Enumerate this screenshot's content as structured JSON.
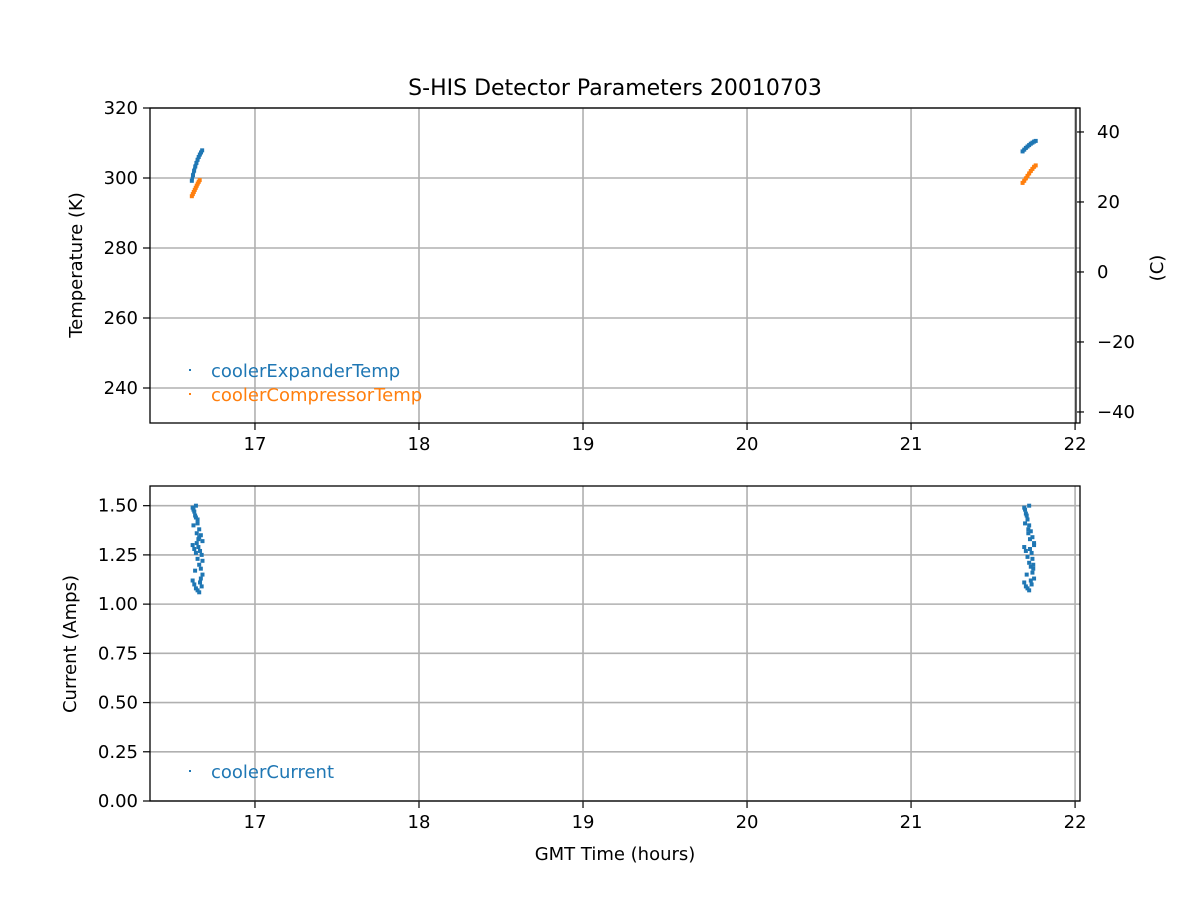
{
  "chart_data": [
    {
      "type": "scatter",
      "title": "S-HIS Detector Parameters 20010703",
      "xlabel": "",
      "ylabel": "Temperature (K)",
      "y2label": "(C)",
      "xlim": [
        16.36,
        22.03
      ],
      "ylim": [
        230,
        320
      ],
      "y2lim": [
        -43.15,
        46.85
      ],
      "xticks": [
        17,
        18,
        19,
        20,
        21,
        22
      ],
      "yticks": [
        240,
        260,
        280,
        300,
        320
      ],
      "y2ticks": [
        -40,
        -20,
        0,
        20,
        40
      ],
      "y2tick_labels": [
        "−40",
        "−20",
        "0",
        "20",
        "40"
      ],
      "grid": true,
      "legend_position": "lower-left",
      "series": [
        {
          "name": "coolerExpanderTemp",
          "color": "#1f77b4",
          "x": [
            16.615,
            16.622,
            16.629,
            16.636,
            16.643,
            16.65,
            16.657,
            16.664,
            16.671,
            16.678,
            21.68,
            21.69,
            21.7,
            21.71,
            21.72,
            21.73,
            21.74,
            21.75,
            21.76
          ],
          "y": [
            299.2,
            300.8,
            302.1,
            303.3,
            304.3,
            305.2,
            306.0,
            306.7,
            307.3,
            307.9,
            307.6,
            308.1,
            308.6,
            309.0,
            309.4,
            309.8,
            310.1,
            310.4,
            310.6
          ]
        },
        {
          "name": "coolerCompressorTemp",
          "color": "#ff7f0e",
          "x": [
            16.615,
            16.621,
            16.627,
            16.633,
            16.639,
            16.645,
            16.651,
            16.657,
            16.663,
            21.68,
            21.69,
            21.7,
            21.71,
            21.72,
            21.73,
            21.74,
            21.75,
            21.76
          ],
          "y": [
            294.8,
            295.4,
            296.0,
            296.6,
            297.2,
            297.8,
            298.4,
            298.9,
            299.4,
            298.6,
            299.2,
            299.9,
            300.6,
            301.3,
            302.0,
            302.6,
            303.2,
            303.6
          ]
        }
      ]
    },
    {
      "type": "scatter",
      "title": "",
      "xlabel": "GMT Time (hours)",
      "ylabel": "Current (Amps)",
      "xlim": [
        16.36,
        22.03
      ],
      "ylim": [
        0,
        1.6
      ],
      "xticks": [
        17,
        18,
        19,
        20,
        21,
        22
      ],
      "yticks": [
        0,
        0.25,
        0.5,
        0.75,
        1.0,
        1.25,
        1.5
      ],
      "ytick_labels": [
        "0.00",
        "0.25",
        "0.50",
        "0.75",
        "1.00",
        "1.25",
        "1.50"
      ],
      "grid": true,
      "legend_position": "lower-left",
      "series": [
        {
          "name": "coolerCurrent",
          "color": "#1f77b4",
          "x": [
            16.62,
            16.63,
            16.64,
            16.65,
            16.66,
            16.67,
            16.68,
            16.62,
            16.63,
            16.64,
            16.65,
            16.66,
            16.67,
            16.68,
            16.62,
            16.63,
            16.64,
            16.65,
            16.66,
            16.67,
            16.68,
            16.625,
            16.635,
            16.645,
            16.655,
            16.665,
            16.675,
            16.625,
            16.635,
            16.645,
            16.655,
            16.665,
            16.675,
            16.64,
            16.65,
            16.66,
            21.69,
            21.7,
            21.71,
            21.72,
            21.73,
            21.74,
            21.75,
            21.69,
            21.7,
            21.71,
            21.72,
            21.73,
            21.74,
            21.75,
            21.69,
            21.7,
            21.71,
            21.72,
            21.73,
            21.74,
            21.75,
            21.695,
            21.705,
            21.715,
            21.725,
            21.735,
            21.745,
            21.695,
            21.705,
            21.715,
            21.725,
            21.735,
            21.745,
            21.72
          ],
          "y": [
            1.49,
            1.47,
            1.44,
            1.41,
            1.38,
            1.35,
            1.32,
            1.3,
            1.28,
            1.26,
            1.23,
            1.2,
            1.18,
            1.15,
            1.12,
            1.1,
            1.08,
            1.07,
            1.06,
            1.13,
            1.22,
            1.48,
            1.45,
            1.36,
            1.33,
            1.27,
            1.25,
            1.4,
            1.17,
            1.31,
            1.29,
            1.11,
            1.09,
            1.5,
            1.43,
            1.34,
            1.49,
            1.46,
            1.43,
            1.4,
            1.37,
            1.34,
            1.31,
            1.29,
            1.27,
            1.24,
            1.21,
            1.19,
            1.16,
            1.13,
            1.11,
            1.09,
            1.08,
            1.07,
            1.12,
            1.23,
            1.3,
            1.48,
            1.45,
            1.38,
            1.33,
            1.26,
            1.2,
            1.41,
            1.15,
            1.36,
            1.28,
            1.1,
            1.18,
            1.5
          ]
        }
      ]
    }
  ]
}
